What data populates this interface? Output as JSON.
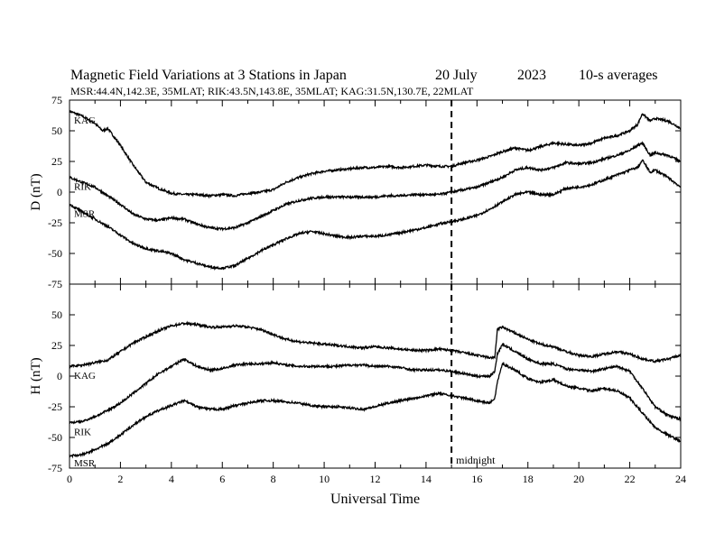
{
  "header": {
    "title": "Magnetic Field Variations at 3 Stations in Japan",
    "date": "20 July",
    "year": "2023",
    "averaging": "10-s averages",
    "stations": "MSR:44.4N,142.3E, 35MLAT;  RIK:43.5N,143.8E, 35MLAT;  KAG:31.5N,130.7E, 22MLAT"
  },
  "colors": {
    "line": "#000000",
    "background": "#ffffff"
  },
  "chart_data": [
    {
      "type": "line",
      "panel": "D",
      "ylabel": "D (nT)",
      "xlabel": "",
      "xlim": [
        0,
        24
      ],
      "ylim": [
        -75,
        75
      ],
      "yticks": [
        75,
        50,
        25,
        0,
        -25,
        -50,
        -75
      ],
      "vertical_line": {
        "x": 15,
        "style": "dashed"
      },
      "series": [
        {
          "name": "KAG",
          "x": [
            0,
            0.5,
            1,
            1.3,
            1.5,
            2,
            2.5,
            3,
            3.5,
            4,
            4.5,
            5,
            5.5,
            6,
            6.5,
            7,
            7.5,
            8,
            8.5,
            9,
            9.5,
            10,
            10.5,
            11,
            11.5,
            12,
            12.5,
            13,
            13.5,
            14,
            14.5,
            15,
            15.5,
            16,
            16.5,
            17,
            17.5,
            18,
            18.5,
            19,
            19.5,
            20,
            20.5,
            21,
            21.5,
            22,
            22.3,
            22.5,
            22.8,
            23,
            23.5,
            24
          ],
          "y": [
            66,
            62,
            56,
            50,
            52,
            38,
            22,
            8,
            3,
            -1,
            -2,
            -2,
            -3,
            -2,
            -3,
            -1,
            0,
            2,
            8,
            12,
            15,
            17,
            18,
            19,
            20,
            20,
            21,
            20,
            21,
            22,
            21,
            21,
            24,
            26,
            29,
            33,
            36,
            34,
            37,
            40,
            39,
            38,
            40,
            44,
            46,
            50,
            55,
            64,
            58,
            60,
            58,
            52
          ]
        },
        {
          "name": "RIK",
          "x": [
            0,
            0.5,
            1,
            1.5,
            2,
            2.5,
            3,
            3.5,
            4,
            4.5,
            5,
            5.5,
            6,
            6.5,
            7,
            7.5,
            8,
            8.5,
            9,
            9.5,
            10,
            10.5,
            11,
            11.5,
            12,
            12.5,
            13,
            13.5,
            14,
            14.5,
            15,
            15.5,
            16,
            16.5,
            17,
            17.5,
            18,
            18.5,
            19,
            19.5,
            20,
            20.5,
            21,
            21.5,
            22,
            22.3,
            22.5,
            22.8,
            23,
            23.5,
            24
          ],
          "y": [
            12,
            8,
            4,
            -3,
            -10,
            -18,
            -22,
            -23,
            -21,
            -22,
            -26,
            -29,
            -30,
            -29,
            -25,
            -20,
            -15,
            -10,
            -7,
            -5,
            -4,
            -4,
            -4,
            -4,
            -4,
            -3,
            -3,
            -2,
            -2,
            -2,
            0,
            2,
            4,
            8,
            12,
            18,
            20,
            18,
            20,
            24,
            23,
            24,
            27,
            30,
            34,
            38,
            40,
            30,
            32,
            30,
            25
          ]
        },
        {
          "name": "MSR",
          "x": [
            0,
            0.5,
            1,
            1.5,
            2,
            2.5,
            3,
            3.5,
            4,
            4.5,
            5,
            5.5,
            6,
            6.5,
            7,
            7.5,
            8,
            8.5,
            9,
            9.5,
            10,
            10.5,
            11,
            11.5,
            12,
            12.5,
            13,
            13.5,
            14,
            14.5,
            15,
            15.5,
            16,
            16.5,
            17,
            17.5,
            18,
            18.5,
            19,
            19.5,
            20,
            20.5,
            21,
            21.5,
            22,
            22.3,
            22.5,
            22.8,
            23,
            23.5,
            24
          ],
          "y": [
            -10,
            -16,
            -22,
            -28,
            -35,
            -42,
            -46,
            -48,
            -50,
            -55,
            -58,
            -61,
            -62,
            -60,
            -54,
            -48,
            -43,
            -38,
            -34,
            -32,
            -34,
            -36,
            -37,
            -36,
            -36,
            -35,
            -33,
            -31,
            -29,
            -26,
            -24,
            -22,
            -19,
            -14,
            -8,
            -2,
            0,
            -2,
            -2,
            3,
            4,
            6,
            10,
            14,
            18,
            20,
            26,
            16,
            18,
            12,
            4
          ]
        }
      ]
    },
    {
      "type": "line",
      "panel": "H",
      "ylabel": "H (nT)",
      "xlabel": "Universal Time",
      "xlim": [
        0,
        24
      ],
      "ylim": [
        -75,
        75
      ],
      "yticks": [
        50,
        25,
        0,
        -25,
        -50,
        -75
      ],
      "xticks": [
        0,
        2,
        4,
        6,
        8,
        10,
        12,
        14,
        16,
        18,
        20,
        22,
        24
      ],
      "vertical_line": {
        "x": 15,
        "style": "dashed",
        "label": "midnight"
      },
      "series": [
        {
          "name": "KAG",
          "x": [
            0,
            0.5,
            1,
            1.5,
            2,
            2.5,
            3,
            3.5,
            4,
            4.5,
            5,
            5.5,
            6,
            6.5,
            7,
            7.5,
            8,
            8.5,
            9,
            9.5,
            10,
            10.5,
            11,
            11.5,
            12,
            12.5,
            13,
            13.5,
            14,
            14.5,
            15,
            15.5,
            16,
            16.5,
            16.7,
            16.8,
            17,
            17.5,
            18,
            18.5,
            19,
            19.5,
            20,
            20.5,
            21,
            21.5,
            22,
            22.5,
            23,
            23.5,
            24
          ],
          "y": [
            8,
            9,
            11,
            13,
            20,
            27,
            32,
            37,
            41,
            43,
            42,
            40,
            40,
            41,
            40,
            38,
            34,
            30,
            28,
            27,
            26,
            25,
            24,
            23,
            24,
            23,
            22,
            21,
            21,
            22,
            21,
            19,
            17,
            15,
            15,
            38,
            40,
            35,
            30,
            26,
            24,
            20,
            17,
            16,
            18,
            20,
            18,
            14,
            12,
            14,
            17
          ]
        },
        {
          "name": "RIK",
          "x": [
            0,
            0.5,
            1,
            1.5,
            2,
            2.5,
            3,
            3.5,
            4,
            4.5,
            5,
            5.5,
            6,
            6.5,
            7,
            7.5,
            8,
            8.5,
            9,
            9.5,
            10,
            10.5,
            11,
            11.5,
            12,
            12.5,
            13,
            13.5,
            14,
            14.5,
            15,
            15.5,
            16,
            16.5,
            16.7,
            16.8,
            17,
            17.5,
            18,
            18.5,
            19,
            19.5,
            20,
            20.5,
            21,
            21.5,
            22,
            22.5,
            23,
            23.5,
            24
          ],
          "y": [
            -38,
            -37,
            -33,
            -28,
            -22,
            -14,
            -6,
            2,
            8,
            14,
            8,
            5,
            6,
            9,
            10,
            10,
            11,
            9,
            8,
            8,
            8,
            8,
            9,
            9,
            8,
            8,
            7,
            5,
            5,
            5,
            4,
            2,
            0,
            0,
            4,
            18,
            26,
            20,
            14,
            10,
            10,
            6,
            5,
            4,
            6,
            8,
            4,
            -10,
            -25,
            -32,
            -35
          ]
        },
        {
          "name": "MSR",
          "x": [
            0,
            0.5,
            1,
            1.5,
            2,
            2.5,
            3,
            3.5,
            4,
            4.5,
            5,
            5.5,
            6,
            6.5,
            7,
            7.5,
            8,
            8.5,
            9,
            9.5,
            10,
            10.5,
            11,
            11.5,
            12,
            12.5,
            13,
            13.5,
            14,
            14.5,
            15,
            15.5,
            16,
            16.5,
            16.7,
            16.8,
            17,
            17.5,
            18,
            18.5,
            19,
            19.5,
            20,
            20.5,
            21,
            21.5,
            22,
            22.5,
            23,
            23.5,
            24
          ],
          "y": [
            -65,
            -64,
            -60,
            -55,
            -48,
            -40,
            -33,
            -28,
            -24,
            -20,
            -25,
            -27,
            -27,
            -24,
            -22,
            -20,
            -20,
            -21,
            -22,
            -24,
            -25,
            -25,
            -26,
            -27,
            -25,
            -22,
            -20,
            -18,
            -16,
            -14,
            -16,
            -18,
            -20,
            -22,
            -18,
            -5,
            10,
            5,
            -2,
            -5,
            -3,
            -8,
            -10,
            -12,
            -10,
            -12,
            -18,
            -30,
            -42,
            -48,
            -53
          ]
        }
      ]
    }
  ]
}
